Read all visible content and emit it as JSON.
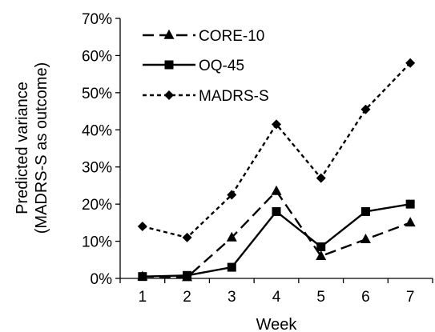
{
  "chart_data": {
    "type": "line",
    "title": "",
    "xlabel": "Week",
    "ylabel_lines": [
      "Predicted variance",
      "(MADRS-S as outcome)"
    ],
    "x": [
      1,
      2,
      3,
      4,
      5,
      6,
      7
    ],
    "x_tick_labels": [
      "1",
      "2",
      "3",
      "4",
      "5",
      "6",
      "7"
    ],
    "ylim": [
      0,
      70
    ],
    "y_ticks": [
      0,
      10,
      20,
      30,
      40,
      50,
      60,
      70
    ],
    "y_tick_labels": [
      "0%",
      "10%",
      "20%",
      "30%",
      "40%",
      "50%",
      "60%",
      "70%"
    ],
    "grid": false,
    "legend_position": "top-left",
    "series": [
      {
        "name": "CORE-10",
        "values": [
          0.5,
          0.3,
          11,
          23.5,
          6,
          10.5,
          15
        ],
        "line_style": "long-dash",
        "marker": "triangle",
        "color": "#000000"
      },
      {
        "name": "OQ-45",
        "values": [
          0.5,
          0.8,
          3,
          18,
          8.5,
          18,
          20
        ],
        "line_style": "solid",
        "marker": "square",
        "color": "#000000"
      },
      {
        "name": "MADRS-S",
        "values": [
          14,
          11,
          22.5,
          41.5,
          27,
          45.5,
          58
        ],
        "line_style": "short-dash",
        "marker": "diamond",
        "color": "#000000"
      }
    ]
  }
}
